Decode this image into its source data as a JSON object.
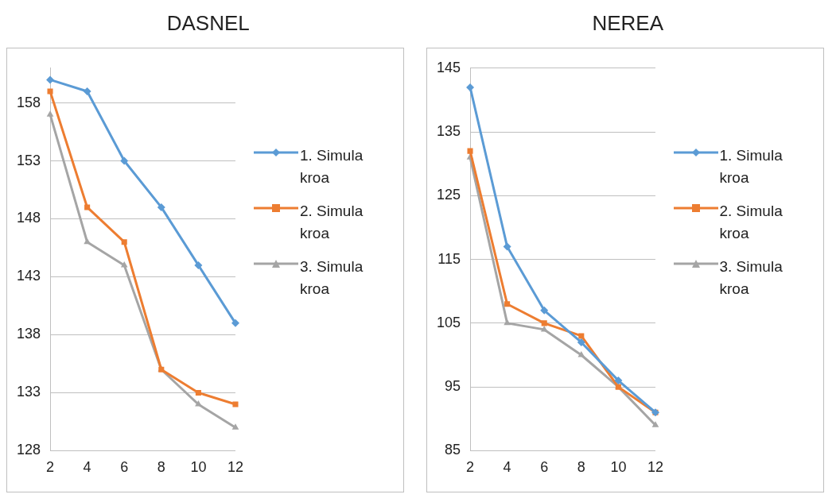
{
  "chart_data": [
    {
      "type": "line",
      "title": "DASNEL",
      "categories": [
        "2",
        "4",
        "6",
        "8",
        "10",
        "12"
      ],
      "ylim": [
        128,
        161
      ],
      "yticks": [
        128,
        133,
        138,
        143,
        148,
        153,
        158
      ],
      "grid": "y",
      "legend": "right",
      "series": [
        {
          "name": "1. Simulakroa",
          "color": "#5b9bd5",
          "marker": "diamond",
          "values": [
            160,
            159,
            153,
            149,
            144,
            139
          ]
        },
        {
          "name": "2. Simulakroa",
          "color": "#ed7d31",
          "marker": "square",
          "values": [
            159,
            149,
            146,
            135,
            133,
            132
          ]
        },
        {
          "name": "3. Simulakroa",
          "color": "#a5a5a5",
          "marker": "triangle",
          "values": [
            157,
            146,
            144,
            135,
            132,
            130
          ]
        }
      ]
    },
    {
      "type": "line",
      "title": "NEREA",
      "categories": [
        "2",
        "4",
        "6",
        "8",
        "10",
        "12"
      ],
      "ylim": [
        85,
        145
      ],
      "yticks": [
        85,
        95,
        105,
        115,
        125,
        135,
        145
      ],
      "grid": "y",
      "legend": "right",
      "series": [
        {
          "name": "1. Simulakroa",
          "color": "#5b9bd5",
          "marker": "diamond",
          "values": [
            142,
            117,
            107,
            102,
            96,
            91
          ]
        },
        {
          "name": "2. Simulakroa",
          "color": "#ed7d31",
          "marker": "square",
          "values": [
            132,
            108,
            105,
            103,
            95,
            91
          ]
        },
        {
          "name": "3. Simulakroa",
          "color": "#a5a5a5",
          "marker": "triangle",
          "values": [
            131,
            105,
            104,
            100,
            95,
            89
          ]
        }
      ]
    }
  ]
}
